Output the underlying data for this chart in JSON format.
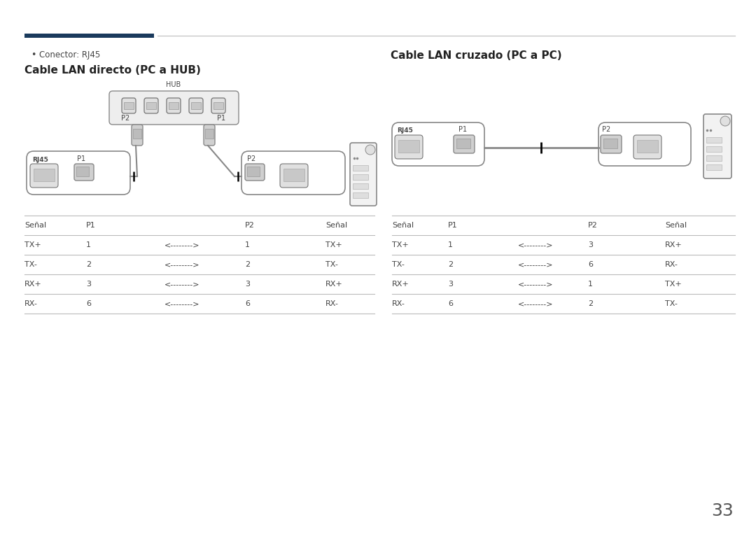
{
  "bg_color": "#ffffff",
  "text_color": "#444444",
  "dark_color": "#555555",
  "line_color": "#bbbbbb",
  "accent_color": "#1a3a5c",
  "bullet_text": "Conector: RJ45",
  "title_left": "Cable LAN directo (PC a HUB)",
  "title_right": "Cable LAN cruzado (PC a PC)",
  "table_left_header": [
    "Señal",
    "P1",
    "",
    "P2",
    "Señal"
  ],
  "table_left_rows": [
    [
      "TX+",
      "1",
      "<-------->",
      "1",
      "TX+"
    ],
    [
      "TX-",
      "2",
      "<-------->",
      "2",
      "TX-"
    ],
    [
      "RX+",
      "3",
      "<-------->",
      "3",
      "RX+"
    ],
    [
      "RX-",
      "6",
      "<-------->",
      "6",
      "RX-"
    ]
  ],
  "table_right_header": [
    "Señal",
    "P1",
    "",
    "P2",
    "Señal"
  ],
  "table_right_rows": [
    [
      "TX+",
      "1",
      "<-------->",
      "3",
      "RX+"
    ],
    [
      "TX-",
      "2",
      "<-------->",
      "6",
      "RX-"
    ],
    [
      "RX+",
      "3",
      "<-------->",
      "1",
      "TX+"
    ],
    [
      "RX-",
      "6",
      "<-------->",
      "2",
      "TX-"
    ]
  ],
  "page_number": "33"
}
